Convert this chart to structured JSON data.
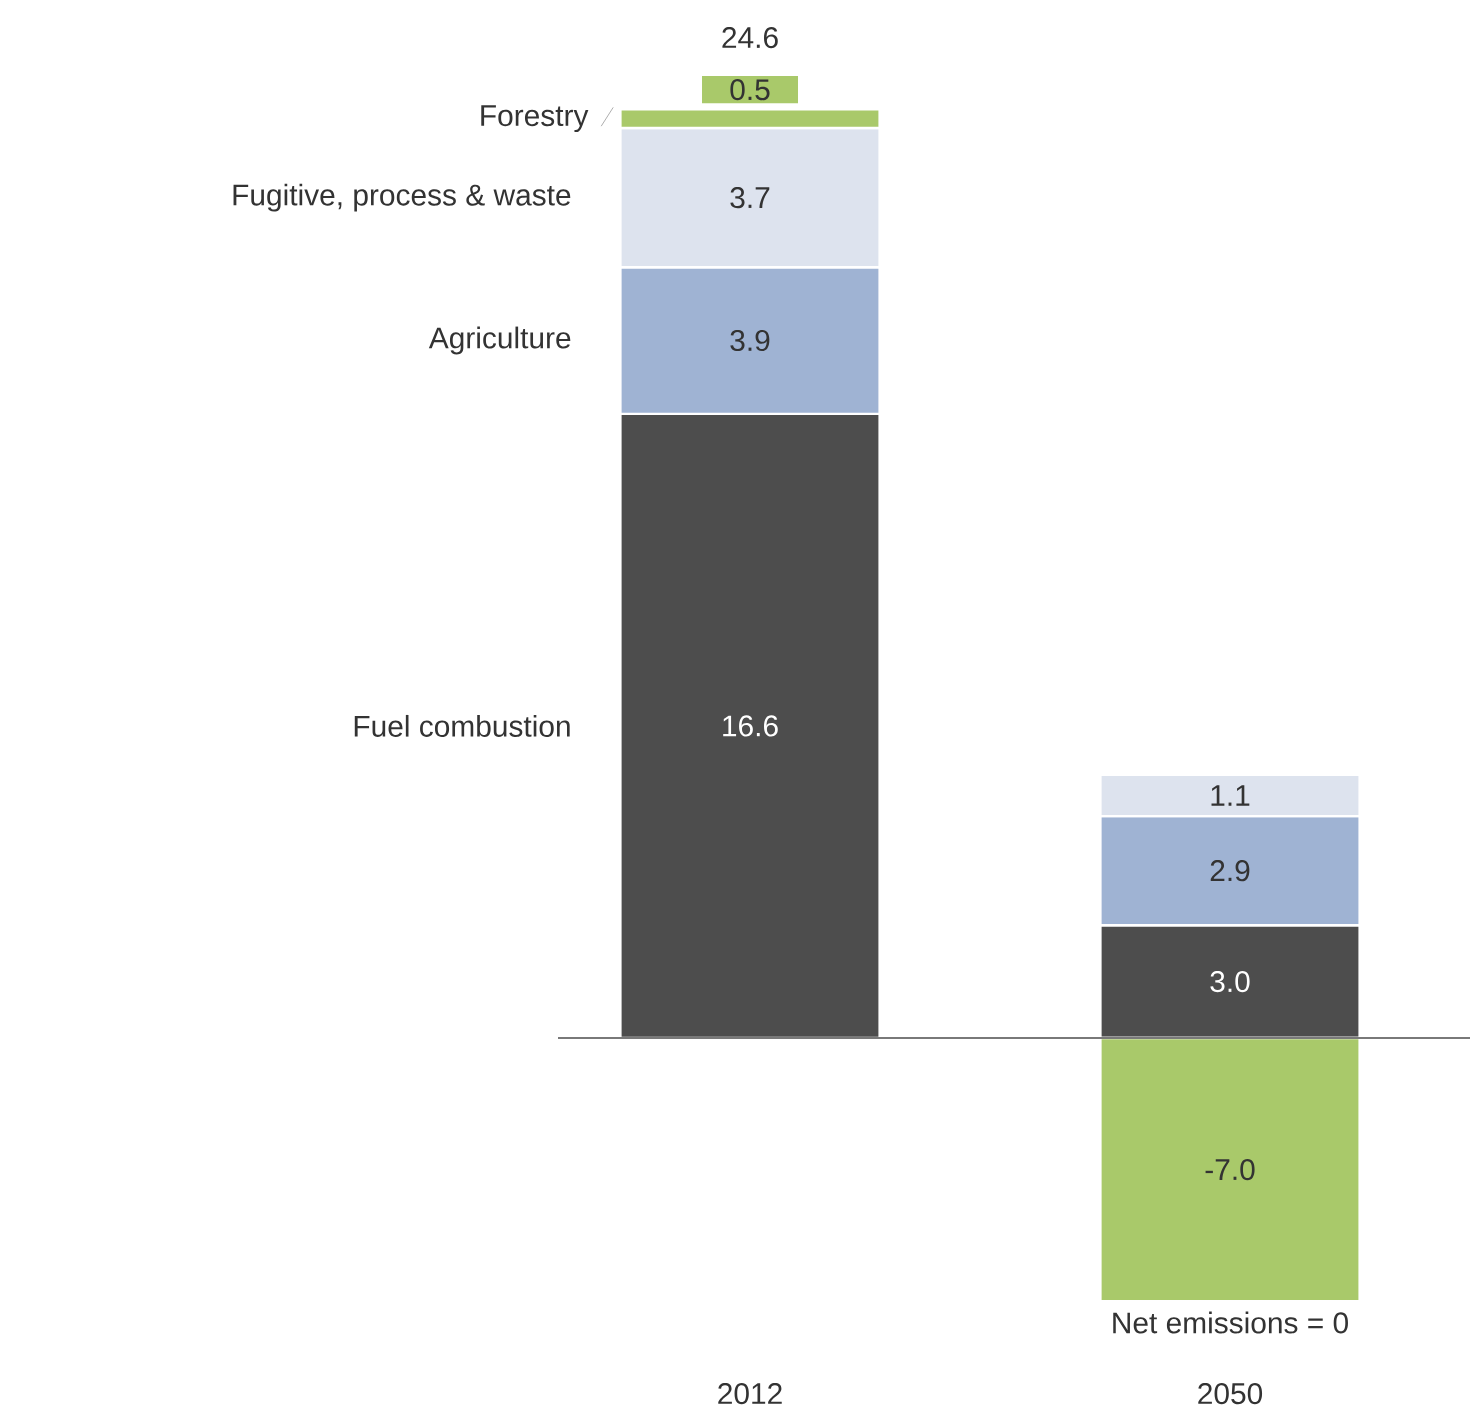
{
  "chart_data": {
    "type": "bar",
    "stacked": true,
    "categories": [
      "2012",
      "2050"
    ],
    "series": [
      {
        "name": "Fuel combustion",
        "color": "#4d4d4d",
        "values": [
          16.6,
          3.0
        ],
        "value_labels": [
          "16.6",
          "3.0"
        ]
      },
      {
        "name": "Agriculture",
        "color": "#9fb3d3",
        "values": [
          3.9,
          2.9
        ],
        "value_labels": [
          "3.9",
          "2.9"
        ]
      },
      {
        "name": "Fugitive, process & waste",
        "color": "#dde3ee",
        "values": [
          3.7,
          1.1
        ],
        "value_labels": [
          "3.7",
          "1.1"
        ]
      },
      {
        "name": "Forestry",
        "color": "#a9c96a",
        "values": [
          0.5,
          -7.0
        ],
        "value_labels": [
          "0.5",
          "-7.0"
        ]
      }
    ],
    "totals": [
      "24.6",
      null
    ],
    "annotations": [
      {
        "text": "Net emissions = 0",
        "x": "2050",
        "y": -7.0
      }
    ]
  }
}
